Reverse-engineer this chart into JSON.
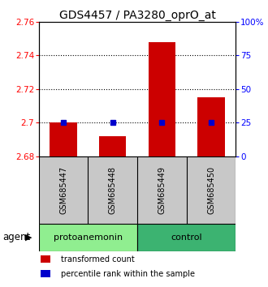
{
  "title": "GDS4457 / PA3280_oprO_at",
  "samples": [
    "GSM685447",
    "GSM685448",
    "GSM685449",
    "GSM685450"
  ],
  "red_values": [
    2.7,
    2.692,
    2.748,
    2.715
  ],
  "blue_values": [
    25,
    25,
    25,
    25
  ],
  "ymin": 2.68,
  "ymax": 2.76,
  "yticks_left": [
    2.68,
    2.7,
    2.72,
    2.74,
    2.76
  ],
  "yticks_right": [
    0,
    25,
    50,
    75,
    100
  ],
  "ytick_labels_left": [
    "2.68",
    "2.7",
    "2.72",
    "2.74",
    "2.76"
  ],
  "ytick_labels_right": [
    "0",
    "25",
    "50",
    "75",
    "100%"
  ],
  "groups": [
    {
      "label": "protoanemonin",
      "indices": [
        0,
        1
      ],
      "color": "#90EE90"
    },
    {
      "label": "control",
      "indices": [
        2,
        3
      ],
      "color": "#3CB371"
    }
  ],
  "agent_label": "agent",
  "bar_color": "#CC0000",
  "dot_color": "#0000CC",
  "bar_width": 0.55,
  "background_sample": "#C8C8C8",
  "legend_red_label": "transformed count",
  "legend_blue_label": "percentile rank within the sample",
  "title_fontsize": 10,
  "tick_fontsize": 7.5,
  "sample_fontsize": 7,
  "group_fontsize": 8,
  "legend_fontsize": 7
}
